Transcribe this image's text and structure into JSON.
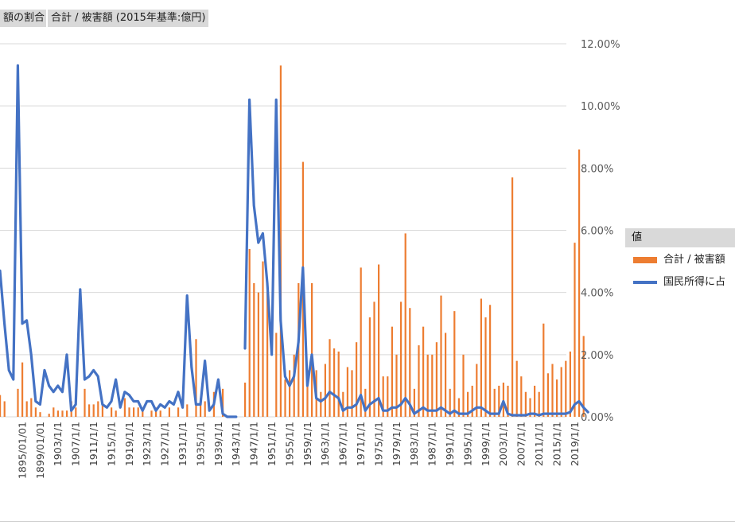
{
  "filters": {
    "left_label": "額の割合",
    "right_label": "合計 / 被害額 (2015年基準:億円)"
  },
  "legend": {
    "title": "値",
    "items": [
      {
        "label": "合計 / 被害額",
        "color": "#ED7D31"
      },
      {
        "label": "国民所得に占",
        "color": "#4472C4"
      }
    ]
  },
  "colors": {
    "bar": "#ED7D31",
    "line": "#4472C4",
    "grid": "#d9d9d9",
    "tick_text": "#595959"
  },
  "chart_data": {
    "type": "bar+line",
    "y_axis_right": {
      "ylim": [
        0,
        12
      ],
      "tick_labels": [
        "0.00%",
        "2.00%",
        "4.00%",
        "6.00%",
        "8.00%",
        "10.00%",
        "12.00%"
      ]
    },
    "x_tick_labels": [
      "1895/01/01",
      "1899/01/01",
      "1903/1/1",
      "1907/1/1",
      "1911/1/1",
      "1915/1/1",
      "1919/1/1",
      "1923/1/1",
      "1927/1/1",
      "1931/1/1",
      "1935/1/1",
      "1939/1/1",
      "1943/1/1",
      "1947/1/1",
      "1951/1/1",
      "1955/1/1",
      "1959/1/1",
      "1963/1/1",
      "1967/1/1",
      "1971/1/1",
      "1975/1/1",
      "1979/1/1",
      "1983/1/1",
      "1987/1/1",
      "1991/1/1",
      "1995/1/1",
      "1999/1/1",
      "2003/1/1",
      "2007/1/1",
      "2011/1/1",
      "2015/1/1",
      "2019/1/1"
    ],
    "x_range": [
      1891,
      2021
    ],
    "bar_series": {
      "name": "合計 / 被害額",
      "points": [
        [
          1891,
          0.7
        ],
        [
          1892,
          0.5
        ],
        [
          1895,
          0.9
        ],
        [
          1896,
          1.75
        ],
        [
          1897,
          0.5
        ],
        [
          1898,
          0.6
        ],
        [
          1899,
          0.3
        ],
        [
          1900,
          0.15
        ],
        [
          1902,
          0.1
        ],
        [
          1903,
          0.3
        ],
        [
          1904,
          0.2
        ],
        [
          1905,
          0.2
        ],
        [
          1906,
          0.2
        ],
        [
          1907,
          0.5
        ],
        [
          1908,
          0.3
        ],
        [
          1910,
          0.9
        ],
        [
          1911,
          0.4
        ],
        [
          1912,
          0.4
        ],
        [
          1913,
          0.5
        ],
        [
          1914,
          0.4
        ],
        [
          1916,
          0.3
        ],
        [
          1917,
          0.2
        ],
        [
          1919,
          0.6
        ],
        [
          1920,
          0.3
        ],
        [
          1921,
          0.3
        ],
        [
          1922,
          0.3
        ],
        [
          1923,
          0.2
        ],
        [
          1925,
          0.2
        ],
        [
          1926,
          0.3
        ],
        [
          1927,
          0.2
        ],
        [
          1929,
          0.3
        ],
        [
          1931,
          0.3
        ],
        [
          1933,
          0.4
        ],
        [
          1935,
          2.5
        ],
        [
          1936,
          0.6
        ],
        [
          1937,
          0.5
        ],
        [
          1939,
          0.8
        ],
        [
          1941,
          0.9
        ],
        [
          1946,
          1.1
        ],
        [
          1947,
          5.4
        ],
        [
          1948,
          4.3
        ],
        [
          1949,
          4.0
        ],
        [
          1950,
          5.0
        ],
        [
          1951,
          4.2
        ],
        [
          1953,
          2.7
        ],
        [
          1954,
          11.3
        ],
        [
          1955,
          1.2
        ],
        [
          1956,
          1.5
        ],
        [
          1957,
          2.0
        ],
        [
          1958,
          4.3
        ],
        [
          1959,
          8.2
        ],
        [
          1960,
          1.5
        ],
        [
          1961,
          4.3
        ],
        [
          1962,
          1.5
        ],
        [
          1963,
          0.8
        ],
        [
          1964,
          1.7
        ],
        [
          1965,
          2.5
        ],
        [
          1966,
          2.2
        ],
        [
          1967,
          2.1
        ],
        [
          1968,
          0.8
        ],
        [
          1969,
          1.6
        ],
        [
          1970,
          1.5
        ],
        [
          1971,
          2.4
        ],
        [
          1972,
          4.8
        ],
        [
          1973,
          0.9
        ],
        [
          1974,
          3.2
        ],
        [
          1975,
          3.7
        ],
        [
          1976,
          4.9
        ],
        [
          1977,
          1.3
        ],
        [
          1978,
          1.3
        ],
        [
          1979,
          2.9
        ],
        [
          1980,
          2.0
        ],
        [
          1981,
          3.7
        ],
        [
          1982,
          5.9
        ],
        [
          1983,
          3.5
        ],
        [
          1984,
          0.9
        ],
        [
          1985,
          2.3
        ],
        [
          1986,
          2.9
        ],
        [
          1987,
          2.0
        ],
        [
          1988,
          2.0
        ],
        [
          1989,
          2.4
        ],
        [
          1990,
          3.9
        ],
        [
          1991,
          2.7
        ],
        [
          1992,
          0.9
        ],
        [
          1993,
          3.4
        ],
        [
          1994,
          0.6
        ],
        [
          1995,
          2.0
        ],
        [
          1996,
          0.8
        ],
        [
          1997,
          1.0
        ],
        [
          1998,
          1.7
        ],
        [
          1999,
          3.8
        ],
        [
          2000,
          3.2
        ],
        [
          2001,
          3.6
        ],
        [
          2002,
          0.9
        ],
        [
          2003,
          1.0
        ],
        [
          2004,
          1.1
        ],
        [
          2005,
          1.0
        ],
        [
          2006,
          7.7
        ],
        [
          2007,
          1.8
        ],
        [
          2008,
          1.3
        ],
        [
          2009,
          0.8
        ],
        [
          2010,
          0.6
        ],
        [
          2011,
          1.0
        ],
        [
          2012,
          0.8
        ],
        [
          2013,
          3.0
        ],
        [
          2014,
          1.4
        ],
        [
          2015,
          1.7
        ],
        [
          2016,
          1.2
        ],
        [
          2017,
          1.6
        ],
        [
          2018,
          1.8
        ],
        [
          2019,
          2.1
        ],
        [
          2020,
          5.6
        ],
        [
          2021,
          8.6
        ],
        [
          2022,
          2.6
        ]
      ]
    },
    "line_series": {
      "name": "国民所得に占",
      "segments": [
        [
          [
            1891,
            4.7
          ],
          [
            1892,
            3.0
          ],
          [
            1893,
            1.5
          ],
          [
            1894,
            1.2
          ],
          [
            1895,
            11.3
          ],
          [
            1896,
            3.0
          ],
          [
            1897,
            3.1
          ],
          [
            1898,
            2.0
          ],
          [
            1899,
            0.5
          ],
          [
            1900,
            0.4
          ],
          [
            1901,
            1.5
          ],
          [
            1902,
            1.0
          ],
          [
            1903,
            0.8
          ],
          [
            1904,
            1.0
          ],
          [
            1905,
            0.8
          ],
          [
            1906,
            2.0
          ],
          [
            1907,
            0.2
          ],
          [
            1908,
            0.4
          ],
          [
            1909,
            4.1
          ],
          [
            1910,
            1.2
          ],
          [
            1911,
            1.3
          ],
          [
            1912,
            1.5
          ],
          [
            1913,
            1.3
          ],
          [
            1914,
            0.4
          ],
          [
            1915,
            0.3
          ],
          [
            1916,
            0.5
          ],
          [
            1917,
            1.2
          ],
          [
            1918,
            0.3
          ],
          [
            1919,
            0.8
          ],
          [
            1920,
            0.7
          ],
          [
            1921,
            0.5
          ],
          [
            1922,
            0.5
          ],
          [
            1923,
            0.2
          ],
          [
            1924,
            0.5
          ],
          [
            1925,
            0.5
          ],
          [
            1926,
            0.2
          ],
          [
            1927,
            0.4
          ],
          [
            1928,
            0.3
          ],
          [
            1929,
            0.5
          ],
          [
            1930,
            0.4
          ],
          [
            1931,
            0.8
          ],
          [
            1932,
            0.3
          ],
          [
            1933,
            3.9
          ],
          [
            1934,
            1.6
          ],
          [
            1935,
            0.4
          ],
          [
            1936,
            0.4
          ],
          [
            1937,
            1.8
          ],
          [
            1938,
            0.2
          ],
          [
            1939,
            0.4
          ],
          [
            1940,
            1.2
          ],
          [
            1941,
            0.1
          ],
          [
            1942,
            0.0
          ],
          [
            1943,
            0.0
          ],
          [
            1944,
            0.0
          ]
        ],
        [
          [
            1946,
            2.2
          ],
          [
            1947,
            10.2
          ],
          [
            1948,
            6.8
          ],
          [
            1949,
            5.6
          ],
          [
            1950,
            5.9
          ],
          [
            1951,
            4.3
          ],
          [
            1952,
            2.0
          ],
          [
            1953,
            10.2
          ],
          [
            1954,
            3.1
          ],
          [
            1955,
            1.3
          ],
          [
            1956,
            1.0
          ],
          [
            1957,
            1.3
          ],
          [
            1958,
            2.4
          ],
          [
            1959,
            4.8
          ],
          [
            1960,
            1.0
          ],
          [
            1961,
            2.0
          ],
          [
            1962,
            0.6
          ],
          [
            1963,
            0.5
          ],
          [
            1964,
            0.6
          ],
          [
            1965,
            0.8
          ],
          [
            1966,
            0.7
          ],
          [
            1967,
            0.6
          ],
          [
            1968,
            0.2
          ],
          [
            1969,
            0.3
          ],
          [
            1970,
            0.3
          ],
          [
            1971,
            0.4
          ],
          [
            1972,
            0.7
          ],
          [
            1973,
            0.2
          ],
          [
            1974,
            0.4
          ],
          [
            1975,
            0.5
          ],
          [
            1976,
            0.6
          ],
          [
            1977,
            0.2
          ],
          [
            1978,
            0.2
          ],
          [
            1979,
            0.3
          ],
          [
            1980,
            0.3
          ],
          [
            1981,
            0.4
          ],
          [
            1982,
            0.6
          ],
          [
            1983,
            0.4
          ],
          [
            1984,
            0.1
          ],
          [
            1985,
            0.2
          ],
          [
            1986,
            0.3
          ],
          [
            1987,
            0.2
          ],
          [
            1988,
            0.2
          ],
          [
            1989,
            0.2
          ],
          [
            1990,
            0.3
          ],
          [
            1991,
            0.2
          ],
          [
            1992,
            0.1
          ],
          [
            1993,
            0.2
          ],
          [
            1994,
            0.1
          ],
          [
            1995,
            0.1
          ],
          [
            1996,
            0.1
          ],
          [
            1997,
            0.2
          ],
          [
            1998,
            0.3
          ],
          [
            1999,
            0.3
          ],
          [
            2000,
            0.2
          ],
          [
            2001,
            0.1
          ],
          [
            2002,
            0.1
          ],
          [
            2003,
            0.1
          ],
          [
            2004,
            0.5
          ],
          [
            2005,
            0.1
          ],
          [
            2006,
            0.05
          ],
          [
            2007,
            0.05
          ],
          [
            2008,
            0.05
          ],
          [
            2009,
            0.05
          ],
          [
            2010,
            0.1
          ],
          [
            2011,
            0.1
          ],
          [
            2012,
            0.05
          ],
          [
            2013,
            0.1
          ],
          [
            2014,
            0.1
          ],
          [
            2015,
            0.1
          ],
          [
            2016,
            0.1
          ],
          [
            2017,
            0.1
          ],
          [
            2018,
            0.1
          ],
          [
            2019,
            0.15
          ],
          [
            2020,
            0.4
          ],
          [
            2021,
            0.5
          ],
          [
            2022,
            0.3
          ],
          [
            2023,
            0.15
          ]
        ]
      ]
    }
  }
}
